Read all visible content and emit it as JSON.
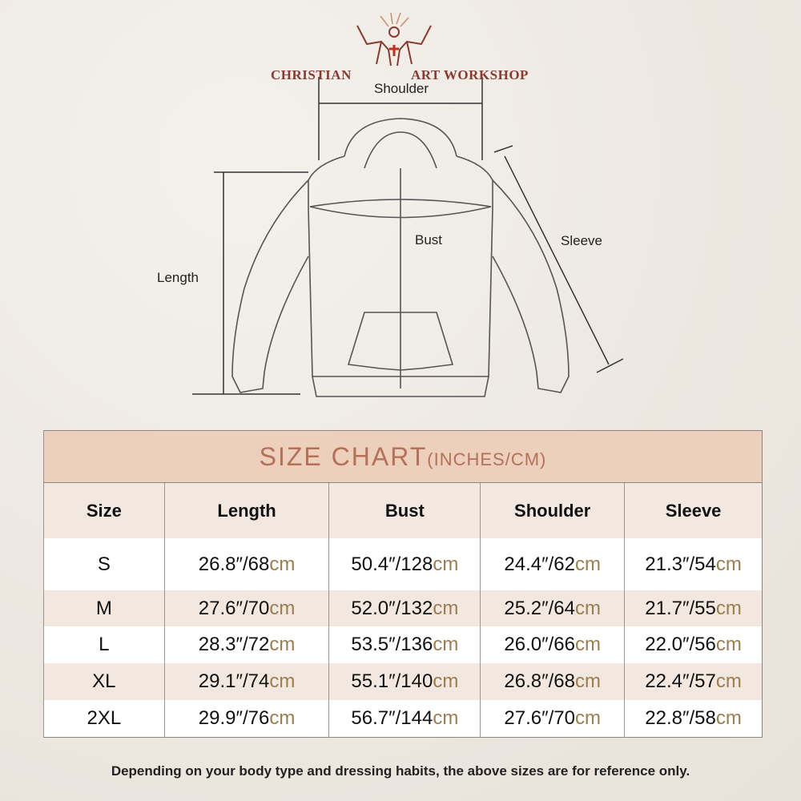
{
  "brand": {
    "left": "CHRISTIAN",
    "right": "ART WORKSHOP"
  },
  "diagram": {
    "shoulder": "Shoulder",
    "bust": "Bust",
    "sleeve": "Sleeve",
    "length": "Length"
  },
  "table": {
    "title": "SIZE CHART",
    "title_units": "(INCHES/CM)",
    "headers": [
      "Size",
      "Length",
      "Bust",
      "Shoulder",
      "Sleeve"
    ],
    "unit_cm": "cm",
    "rows": [
      {
        "size": "S",
        "cells": [
          "26.8″/68",
          "50.4″/128",
          "24.4″/62",
          "21.3″/54"
        ]
      },
      {
        "size": "M",
        "cells": [
          "27.6″/70",
          "52.0″/132",
          "25.2″/64",
          "21.7″/55"
        ]
      },
      {
        "size": "L",
        "cells": [
          "28.3″/72",
          "53.5″/136",
          "26.0″/66",
          "22.0″/56"
        ]
      },
      {
        "size": "XL",
        "cells": [
          "29.1″/74",
          "55.1″/140",
          "26.8″/68",
          "22.4″/57"
        ]
      },
      {
        "size": "2XL",
        "cells": [
          "29.9″/76",
          "56.7″/144",
          "27.6″/70",
          "22.8″/58"
        ]
      }
    ]
  },
  "note": "Depending on your body type and dressing habits, the above sizes are for reference only.",
  "colors": {
    "header_bg": "#ecd0bc",
    "title": "#b5705a",
    "cm": "#9c7d50",
    "brand": "#8a3a30"
  }
}
